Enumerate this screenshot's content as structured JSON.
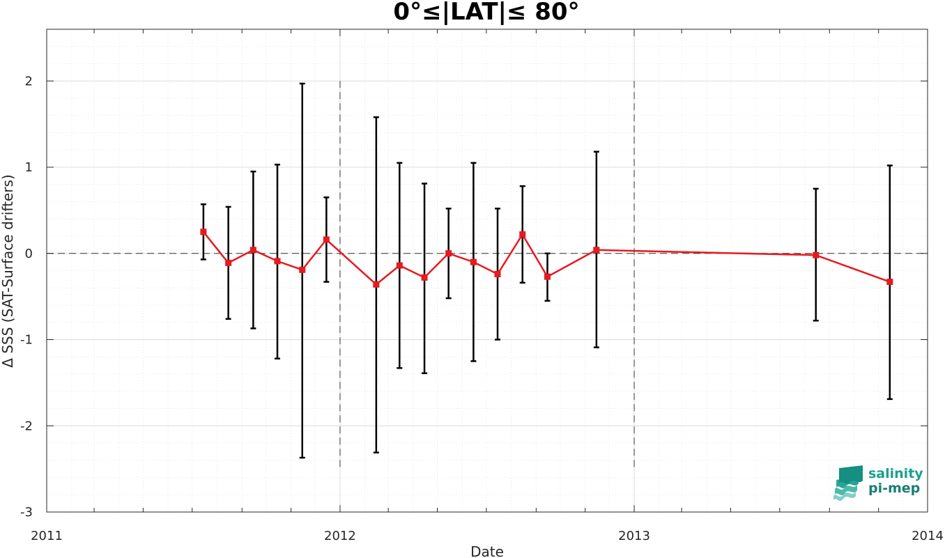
{
  "chart_data": {
    "type": "line",
    "title": "0°≤|LAT|≤ 80°",
    "xlabel": "Date",
    "ylabel": "Δ SSS (SAT-Surface drifters)",
    "xlim": [
      "2011-01-01",
      "2014-01-01"
    ],
    "ylim": [
      -3,
      2.6
    ],
    "x_ticks": [
      "2011-01-01",
      "2012-01-01",
      "2013-01-01",
      "2014-01-01"
    ],
    "x_tick_labels": [
      "2011",
      "2012",
      "2013",
      "2014"
    ],
    "y_ticks": [
      -3,
      -2,
      -1,
      0,
      1,
      2
    ],
    "y_tick_labels": [
      "-3",
      "-2",
      "-1",
      "0",
      "1",
      "2"
    ],
    "grid": true,
    "reference_line_y": 0,
    "year_markers": [
      "2012-01-01",
      "2013-01-01"
    ],
    "series": [
      {
        "color": "#e8191f",
        "error_bar_color": "#000000",
        "points": [
          {
            "date": "2011-07-15",
            "y": 0.25,
            "low": -0.07,
            "high": 0.57
          },
          {
            "date": "2011-08-15",
            "y": -0.11,
            "low": -0.76,
            "high": 0.54
          },
          {
            "date": "2011-09-15",
            "y": 0.04,
            "low": -0.87,
            "high": 0.95
          },
          {
            "date": "2011-10-15",
            "y": -0.09,
            "low": -1.22,
            "high": 1.03
          },
          {
            "date": "2011-11-15",
            "y": -0.19,
            "low": -2.37,
            "high": 1.97
          },
          {
            "date": "2011-12-15",
            "y": 0.16,
            "low": -0.33,
            "high": 0.65
          },
          {
            "date": "2012-02-15",
            "y": -0.36,
            "low": -2.31,
            "high": 1.58
          },
          {
            "date": "2012-03-15",
            "y": -0.14,
            "low": -1.33,
            "high": 1.05
          },
          {
            "date": "2012-04-15",
            "y": -0.28,
            "low": -1.39,
            "high": 0.81
          },
          {
            "date": "2012-05-15",
            "y": 0.0,
            "low": -0.52,
            "high": 0.52
          },
          {
            "date": "2012-06-15",
            "y": -0.1,
            "low": -1.25,
            "high": 1.05
          },
          {
            "date": "2012-07-15",
            "y": -0.24,
            "low": -1.0,
            "high": 0.52
          },
          {
            "date": "2012-08-15",
            "y": 0.22,
            "low": -0.34,
            "high": 0.78
          },
          {
            "date": "2012-09-15",
            "y": -0.27,
            "low": -0.55,
            "high": 0.0
          },
          {
            "date": "2012-11-15",
            "y": 0.04,
            "low": -1.09,
            "high": 1.18
          },
          {
            "date": "2013-08-15",
            "y": -0.02,
            "low": -0.78,
            "high": 0.75
          },
          {
            "date": "2013-11-15",
            "y": -0.33,
            "low": -1.69,
            "high": 1.02
          }
        ]
      }
    ]
  },
  "logo": {
    "line1": "salinity",
    "line2": "pi-mep",
    "color": "#1a9c8d"
  }
}
